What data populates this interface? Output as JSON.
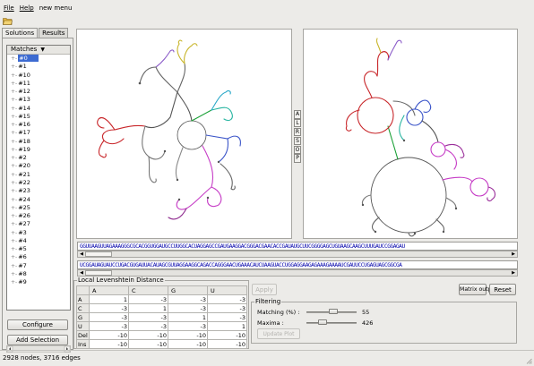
{
  "menu": {
    "file": "File",
    "help": "Help",
    "new_menu": "new menu"
  },
  "tabs": {
    "solutions": "Solutions",
    "results": "Results"
  },
  "tree": {
    "header": "Matches",
    "items": [
      "#0",
      "#1",
      "#10",
      "#11",
      "#12",
      "#13",
      "#14",
      "#15",
      "#16",
      "#17",
      "#18",
      "#19",
      "#2",
      "#20",
      "#21",
      "#22",
      "#23",
      "#24",
      "#25",
      "#26",
      "#27",
      "#3",
      "#4",
      "#5",
      "#6",
      "#7",
      "#8",
      "#9"
    ]
  },
  "buttons": {
    "configure": "Configure",
    "add_selection": "Add Selection",
    "apply": "Apply",
    "matrix_output": "Matrix output",
    "reset": "Reset",
    "update_plot": "Update Plot"
  },
  "side_buttons": [
    "A",
    "L",
    "R",
    "S",
    "O",
    "P"
  ],
  "sequences": {
    "top": "GGUUAAGUUAGAAAGGGCGCACGGUGGAUGCCUUGGCACUAGGAGCCGAUGAAGGACGGGACGAACACCGAUAUGCUUCGGGGAGCUGUAAGCAAGCUUUGAUCCGGAGAU",
    "bottom": "UCGGAUAGUAUCCUGACGUGAUUACAUAGCGUUAGGAAGGCAGACCAGGGAACUGAAACAUCUAAGUACCUGGAGGAAGAGAAAGAAAAUCGAUUCCUGAGUAGCGGCGA"
  },
  "levenshtein": {
    "title": "Local Levenshtein Distance",
    "columns": [
      "A",
      "C",
      "G",
      "U"
    ],
    "rows": [
      {
        "label": "A",
        "values": [
          "1",
          "-3",
          "-3",
          "-3"
        ]
      },
      {
        "label": "C",
        "values": [
          "-3",
          "1",
          "-3",
          "-3"
        ]
      },
      {
        "label": "G",
        "values": [
          "-3",
          "-3",
          "1",
          "-3"
        ]
      },
      {
        "label": "U",
        "values": [
          "-3",
          "-3",
          "-3",
          "1"
        ]
      },
      {
        "label": "Del",
        "values": [
          "-10",
          "-10",
          "-10",
          "-10"
        ]
      },
      {
        "label": "Ins",
        "values": [
          "-10",
          "-10",
          "-10",
          "-10"
        ]
      }
    ]
  },
  "filtering": {
    "title": "Filtering",
    "matching_label": "Matching (%) :",
    "matching_value": "55",
    "maxima_label": "Maxima :",
    "maxima_value": "426"
  },
  "status": "2928 nodes, 3716 edges",
  "colors": {
    "background": "#ecebe8",
    "selection": "#3d6bd1",
    "sequence_text": "#0000aa",
    "desktop": "#5fd35f"
  }
}
